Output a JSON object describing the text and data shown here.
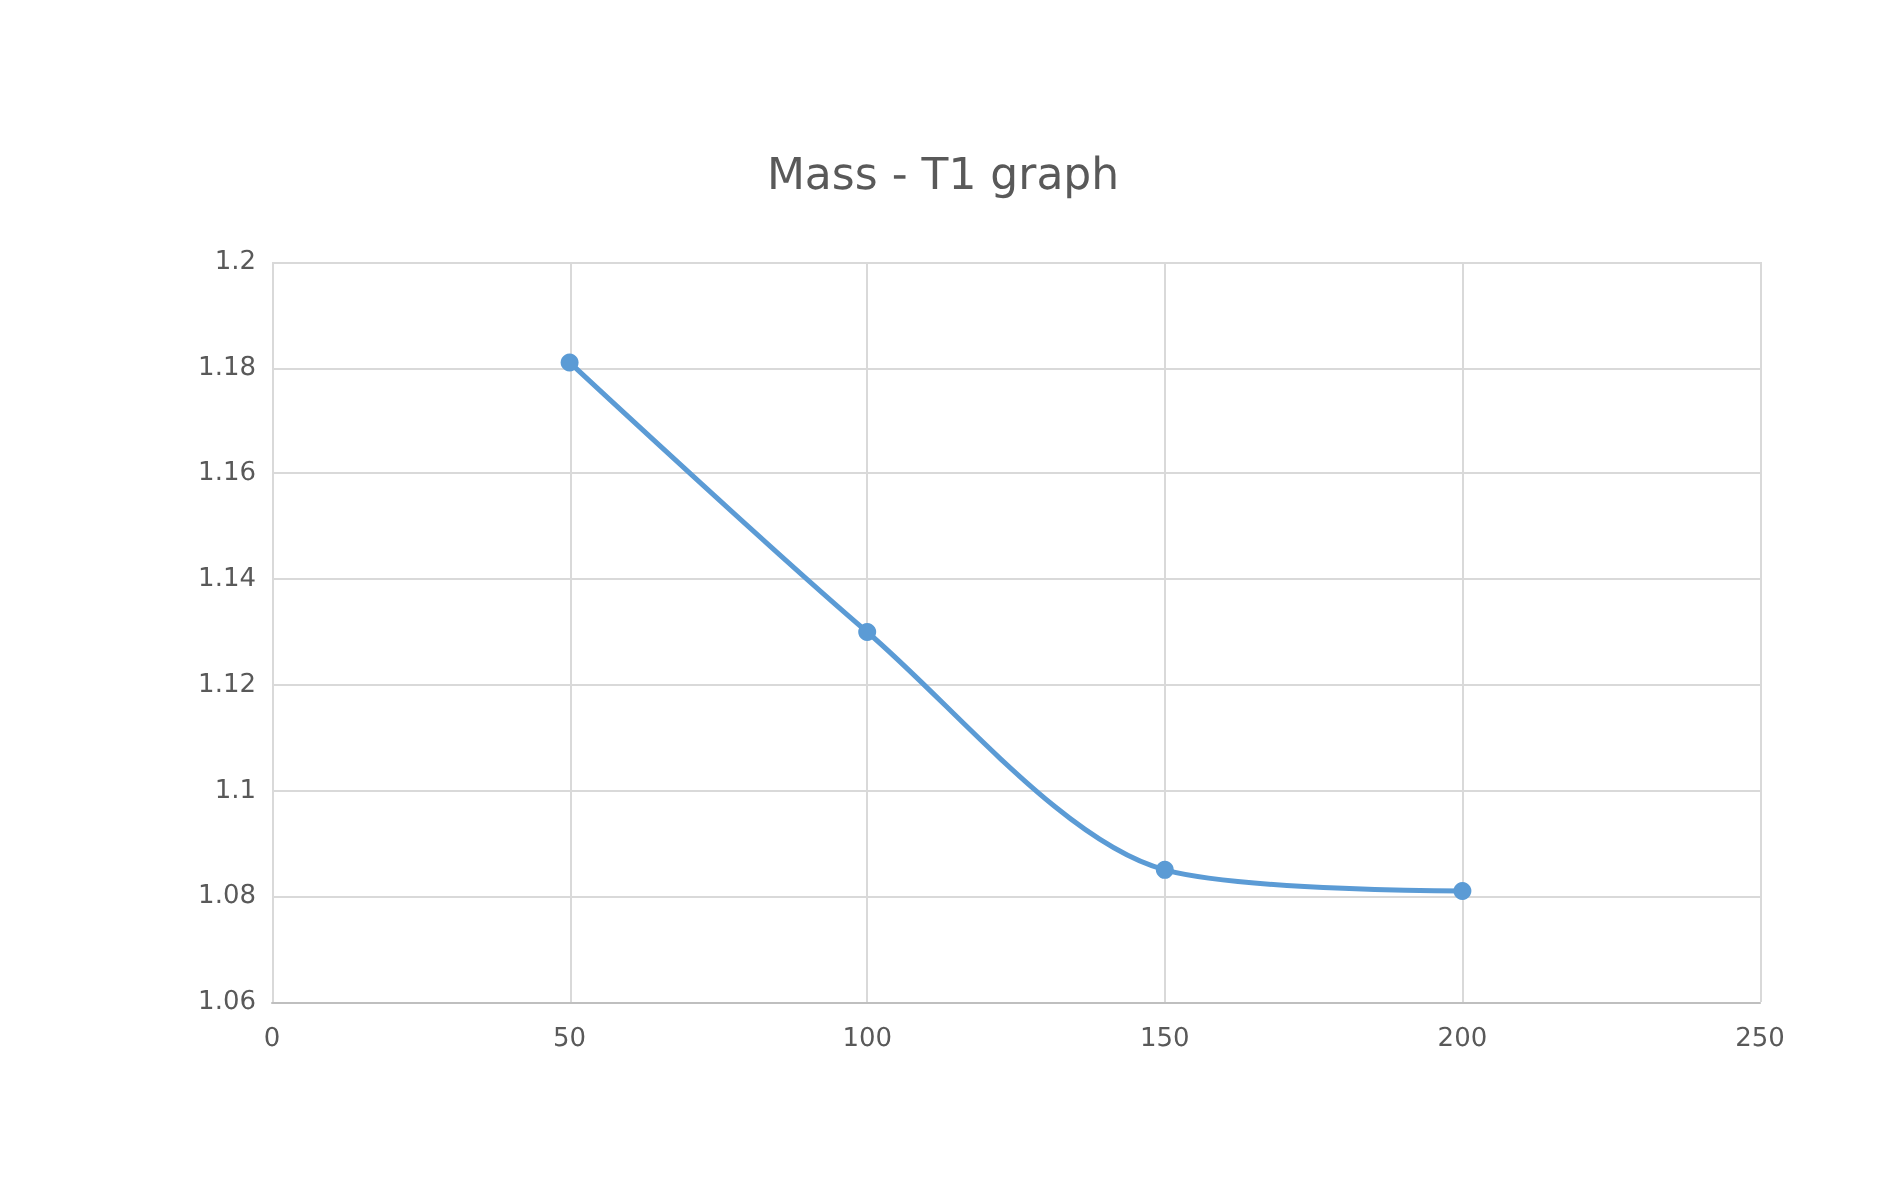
{
  "chart_data": {
    "type": "line",
    "title": "Mass - T1 graph",
    "x": [
      50,
      100,
      150,
      200
    ],
    "series": [
      {
        "color": "#5b9bd5",
        "values": [
          1.181,
          1.13,
          1.085,
          1.081
        ]
      }
    ],
    "xlim": [
      0,
      250
    ],
    "xticks": [
      0,
      50,
      100,
      150,
      200,
      250
    ],
    "ylim": [
      1.06,
      1.2
    ],
    "yticks": [
      1.06,
      1.08,
      1.1,
      1.12,
      1.14,
      1.16,
      1.18,
      1.2
    ],
    "grid": true,
    "marker": "circle",
    "line_style": "solid"
  }
}
